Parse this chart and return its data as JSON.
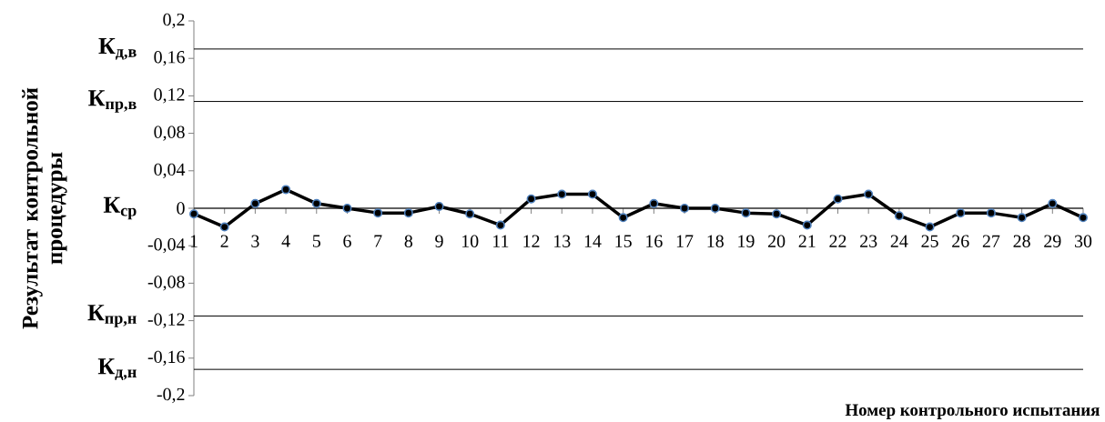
{
  "chart_data": {
    "type": "line",
    "xlabel": "Номер контрольного испытания",
    "ylabel": "Результат контрольной процедуры",
    "categories": [
      "1",
      "2",
      "3",
      "4",
      "5",
      "6",
      "7",
      "8",
      "9",
      "10",
      "11",
      "12",
      "13",
      "14",
      "15",
      "16",
      "17",
      "18",
      "19",
      "20",
      "21",
      "22",
      "23",
      "24",
      "25",
      "26",
      "27",
      "28",
      "29",
      "30"
    ],
    "series": [
      {
        "color": "#000000",
        "values": [
          -0.006,
          -0.02,
          0.005,
          0.02,
          0.005,
          0,
          -0.005,
          -0.005,
          0.002,
          -0.006,
          -0.018,
          0.01,
          0.015,
          0.015,
          -0.01,
          0.005,
          0,
          0,
          -0.005,
          -0.006,
          -0.018,
          0.01,
          0.015,
          -0.008,
          -0.02,
          -0.005,
          -0.005,
          -0.01,
          0.005,
          -0.01
        ]
      }
    ],
    "ylim": [
      -0.2,
      0.2
    ],
    "yticks": [
      {
        "value": -0.2,
        "label": "-0,2"
      },
      {
        "value": -0.16,
        "label": "-0,16"
      },
      {
        "value": -0.12,
        "label": "-0,12"
      },
      {
        "value": -0.08,
        "label": "-0,08"
      },
      {
        "value": -0.04,
        "label": "-0,04"
      },
      0,
      {
        "value": 0.04,
        "label": "0,04"
      },
      {
        "value": 0.08,
        "label": "0,08"
      },
      {
        "value": 0.12,
        "label": "0,12"
      },
      {
        "value": 0.16,
        "label": "0,16"
      },
      {
        "value": 0.2,
        "label": "0,2"
      }
    ],
    "ref_lines": [
      {
        "axis": "y",
        "value": 0.17,
        "label": "К$_{д,в}$",
        "color": "#000000"
      },
      {
        "axis": "y",
        "value": 0.114,
        "label": "К$_{пр,в}$",
        "color": "#000000"
      },
      {
        "axis": "y",
        "value": 0,
        "label": "К$_{ср}$",
        "color": "#000000"
      },
      {
        "axis": "y",
        "value": -0.115,
        "label": "К$_{пр,н}$",
        "color": "#000000"
      },
      {
        "axis": "y",
        "value": -0.172,
        "label": "К$_{д,н}$",
        "color": "#000000"
      }
    ],
    "grid": false,
    "legend": false,
    "marker": "circle",
    "line_style": "solid"
  }
}
